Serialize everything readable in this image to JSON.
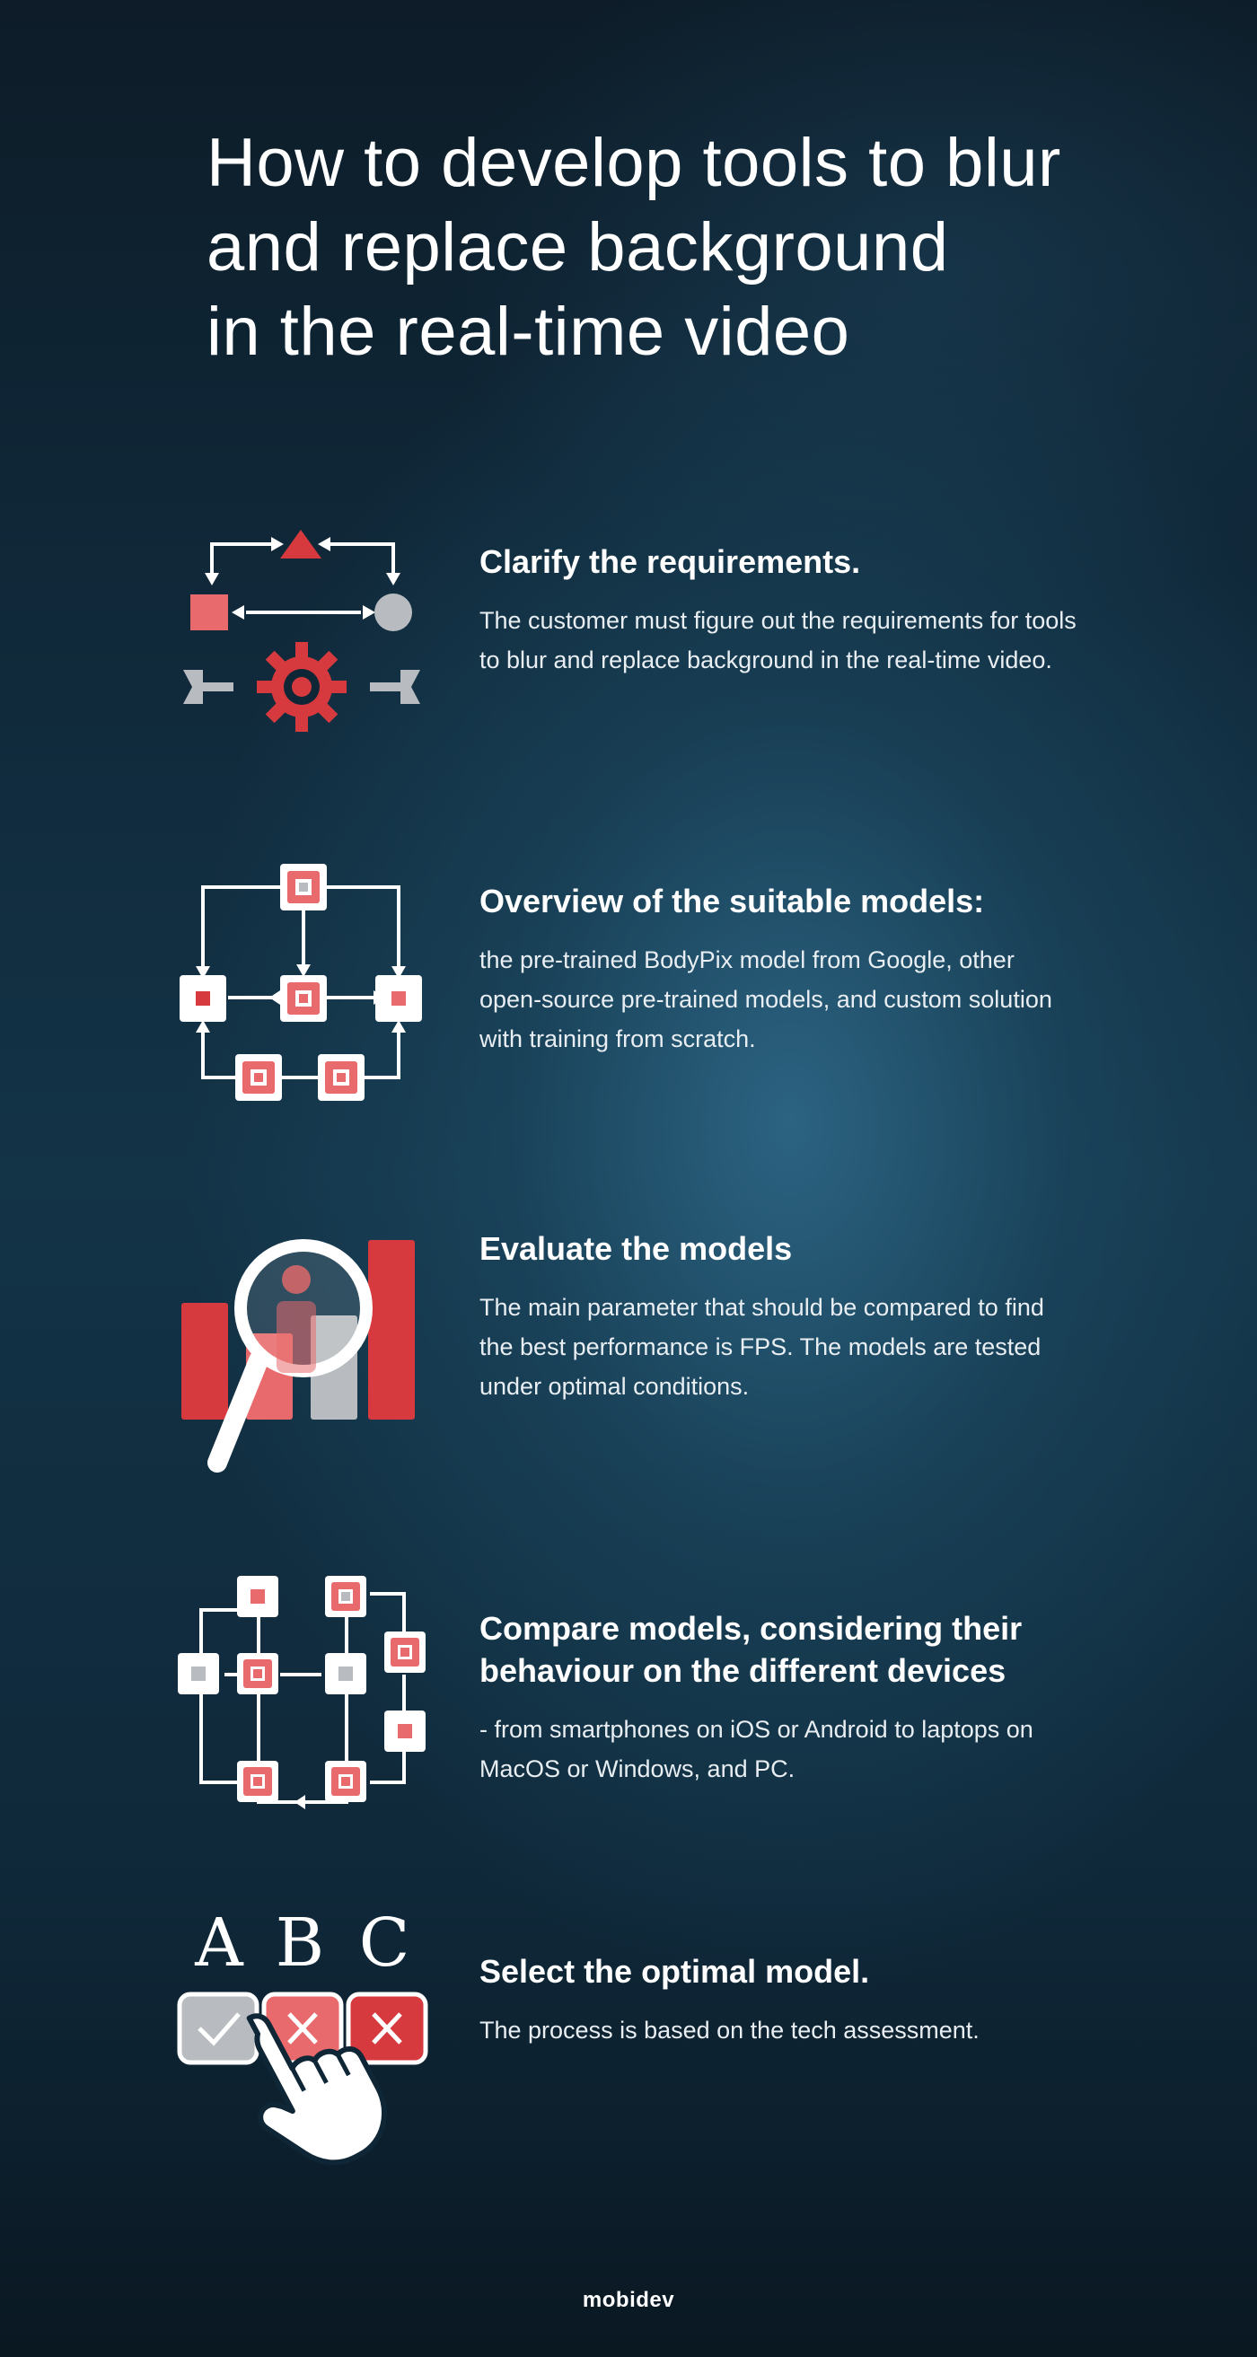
{
  "title": {
    "line1": "How to develop tools to blur",
    "line2": "and replace background",
    "line3": "in the real-time video"
  },
  "steps": [
    {
      "heading_lines": [
        "Clarify the requirements."
      ],
      "desc_lines": [
        "The customer must figure out the requirements for tools",
        "to blur and replace background in the real-time video."
      ],
      "icon": "requirements-gear-icon"
    },
    {
      "heading_lines": [
        "Overview of the suitable models:"
      ],
      "desc_lines": [
        "the pre-trained BodyPix model from Google, other",
        "open-source pre-trained models, and custom solution",
        "with training from scratch."
      ],
      "icon": "model-flowchart-icon"
    },
    {
      "heading_lines": [
        "Evaluate the models"
      ],
      "desc_lines": [
        "The main parameter that should be compared to find",
        "the best performance is FPS. The models are tested",
        "under optimal conditions."
      ],
      "icon": "magnifier-bar-chart-icon"
    },
    {
      "heading_lines": [
        "Compare models, considering their",
        "behaviour on the different devices"
      ],
      "desc_lines": [
        "- from smartphones on iOS or Android to laptops on",
        "MacOS or Windows, and PC."
      ],
      "icon": "device-network-icon"
    },
    {
      "heading_lines": [
        "Select the optimal model."
      ],
      "desc_lines": [
        "The process is based on the tech assessment."
      ],
      "icon": "abc-select-hand-icon"
    }
  ],
  "abc_letters": [
    "A",
    "B",
    "C"
  ],
  "logo": "mobidev",
  "colors": {
    "accent_red": "#d63a3e",
    "light_red": "#e86a6c",
    "gray": "#b8bcc0",
    "white": "#ffffff"
  }
}
